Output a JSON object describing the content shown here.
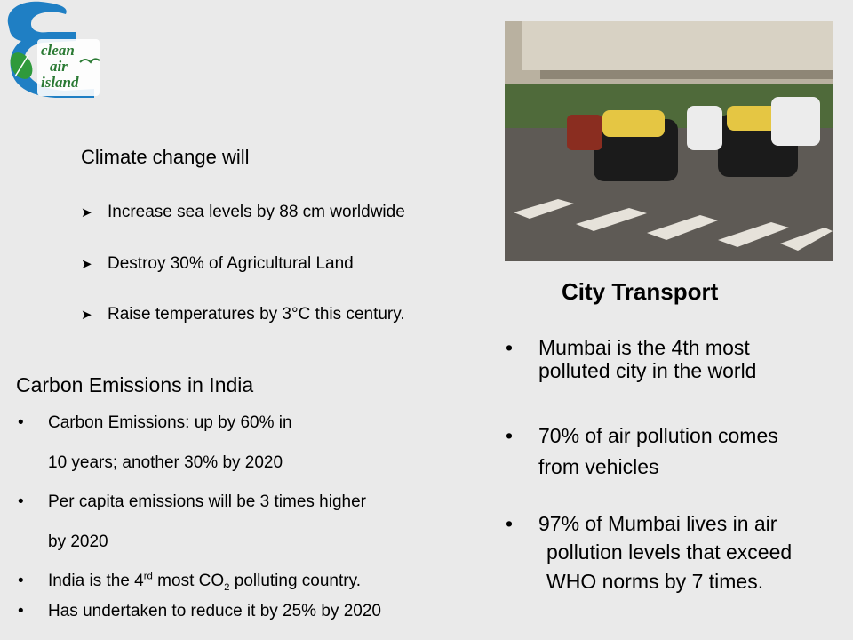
{
  "logo": {
    "lines": [
      "clean",
      "air",
      "island"
    ]
  },
  "climate": {
    "heading": "Climate change will",
    "items": [
      "Increase sea levels by 88 cm worldwide",
      "Destroy 30% of Agricultural Land",
      "Raise temperatures by 3°C this century."
    ]
  },
  "carbon": {
    "title": "Carbon Emissions in India",
    "item1_line1": "Carbon Emissions: up by 60% in",
    "item1_line2": "10 years; another 30% by 2020",
    "item2_line1": "Per capita emissions will be 3 times higher",
    "item2_line2": "by 2020",
    "item3_a": "India is the 4",
    "item3_sup": "rd",
    "item3_b": " most CO",
    "item3_sub": "2",
    "item3_c": " polluting country.",
    "item4": "Has undertaken to reduce it by 25% by 2020"
  },
  "city": {
    "title": "City Transport",
    "item1_line1": "Mumbai is the 4th most",
    "item1_line2": "polluted city in the world",
    "item2_line1": "70% of air pollution comes",
    "item2_line2": "from vehicles",
    "item3_line1": "97% of Mumbai lives in air",
    "item3_line2": "pollution levels that exceed",
    "item3_line3": "WHO norms by 7 times."
  },
  "bullet": "•",
  "arrow": "➤"
}
